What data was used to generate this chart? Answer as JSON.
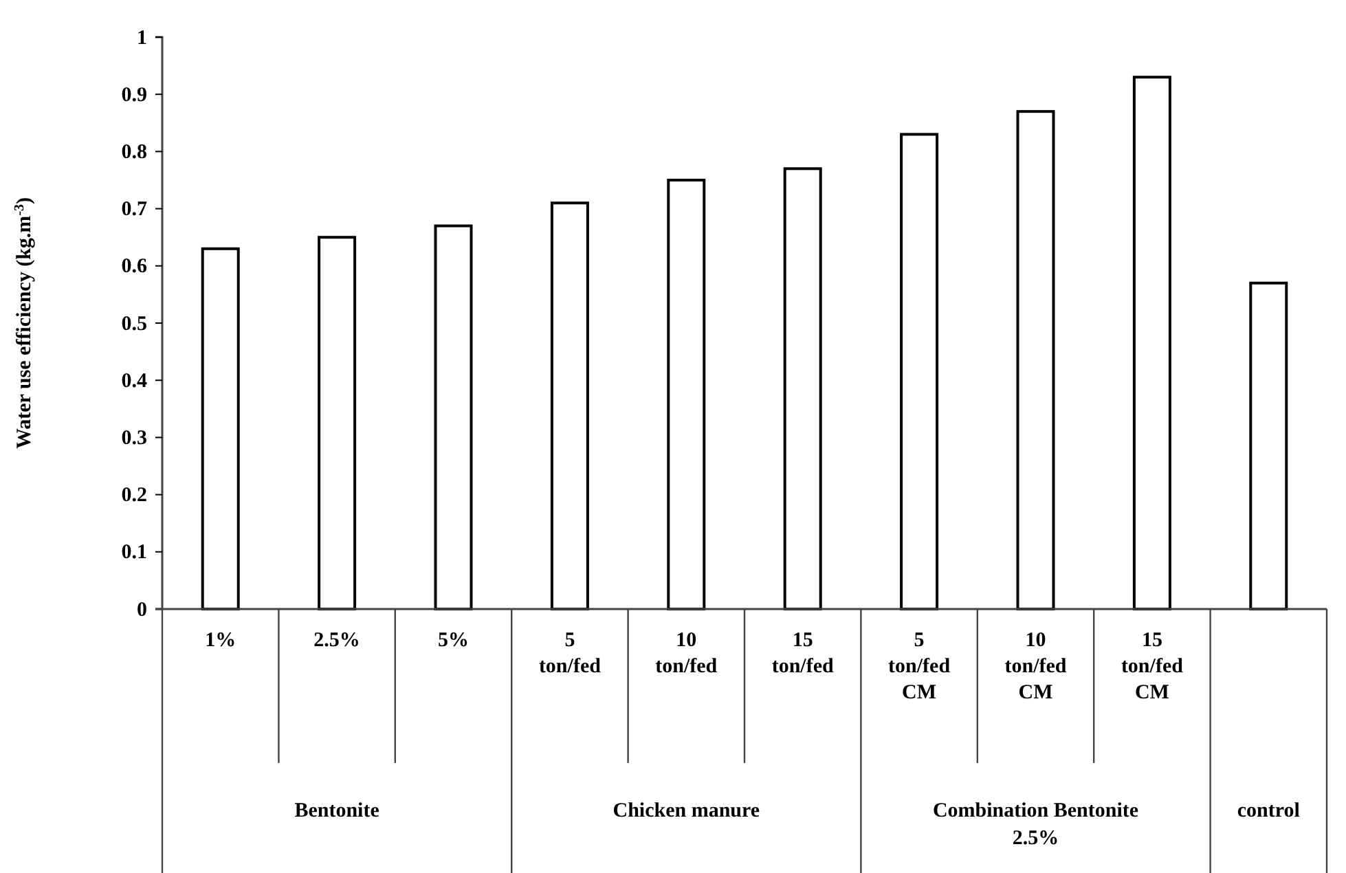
{
  "chart_data": {
    "type": "bar",
    "ylabel": "Water use efficiency (kg.m$^{-3}$)",
    "categories": [
      "1%",
      "2.5%",
      "5%",
      "5 ton/fed",
      "10 ton/fed",
      "15 ton/fed",
      "5 ton/fed CM",
      "10 ton/fed CM",
      "15 ton/fed CM",
      null
    ],
    "values": [
      0.63,
      0.65,
      0.67,
      0.71,
      0.75,
      0.77,
      0.83,
      0.87,
      0.93,
      0.57
    ],
    "color": "#ffffff",
    "ylim": [
      0,
      1
    ],
    "yticks": [
      0,
      0.1,
      0.2,
      0.3,
      0.4,
      0.5,
      0.6,
      0.7,
      0.8,
      0.9,
      1
    ],
    "annotations": [
      "Bentonite",
      "Chicken manure",
      "Combination Bentonite\n2.5%",
      "control"
    ]
  }
}
